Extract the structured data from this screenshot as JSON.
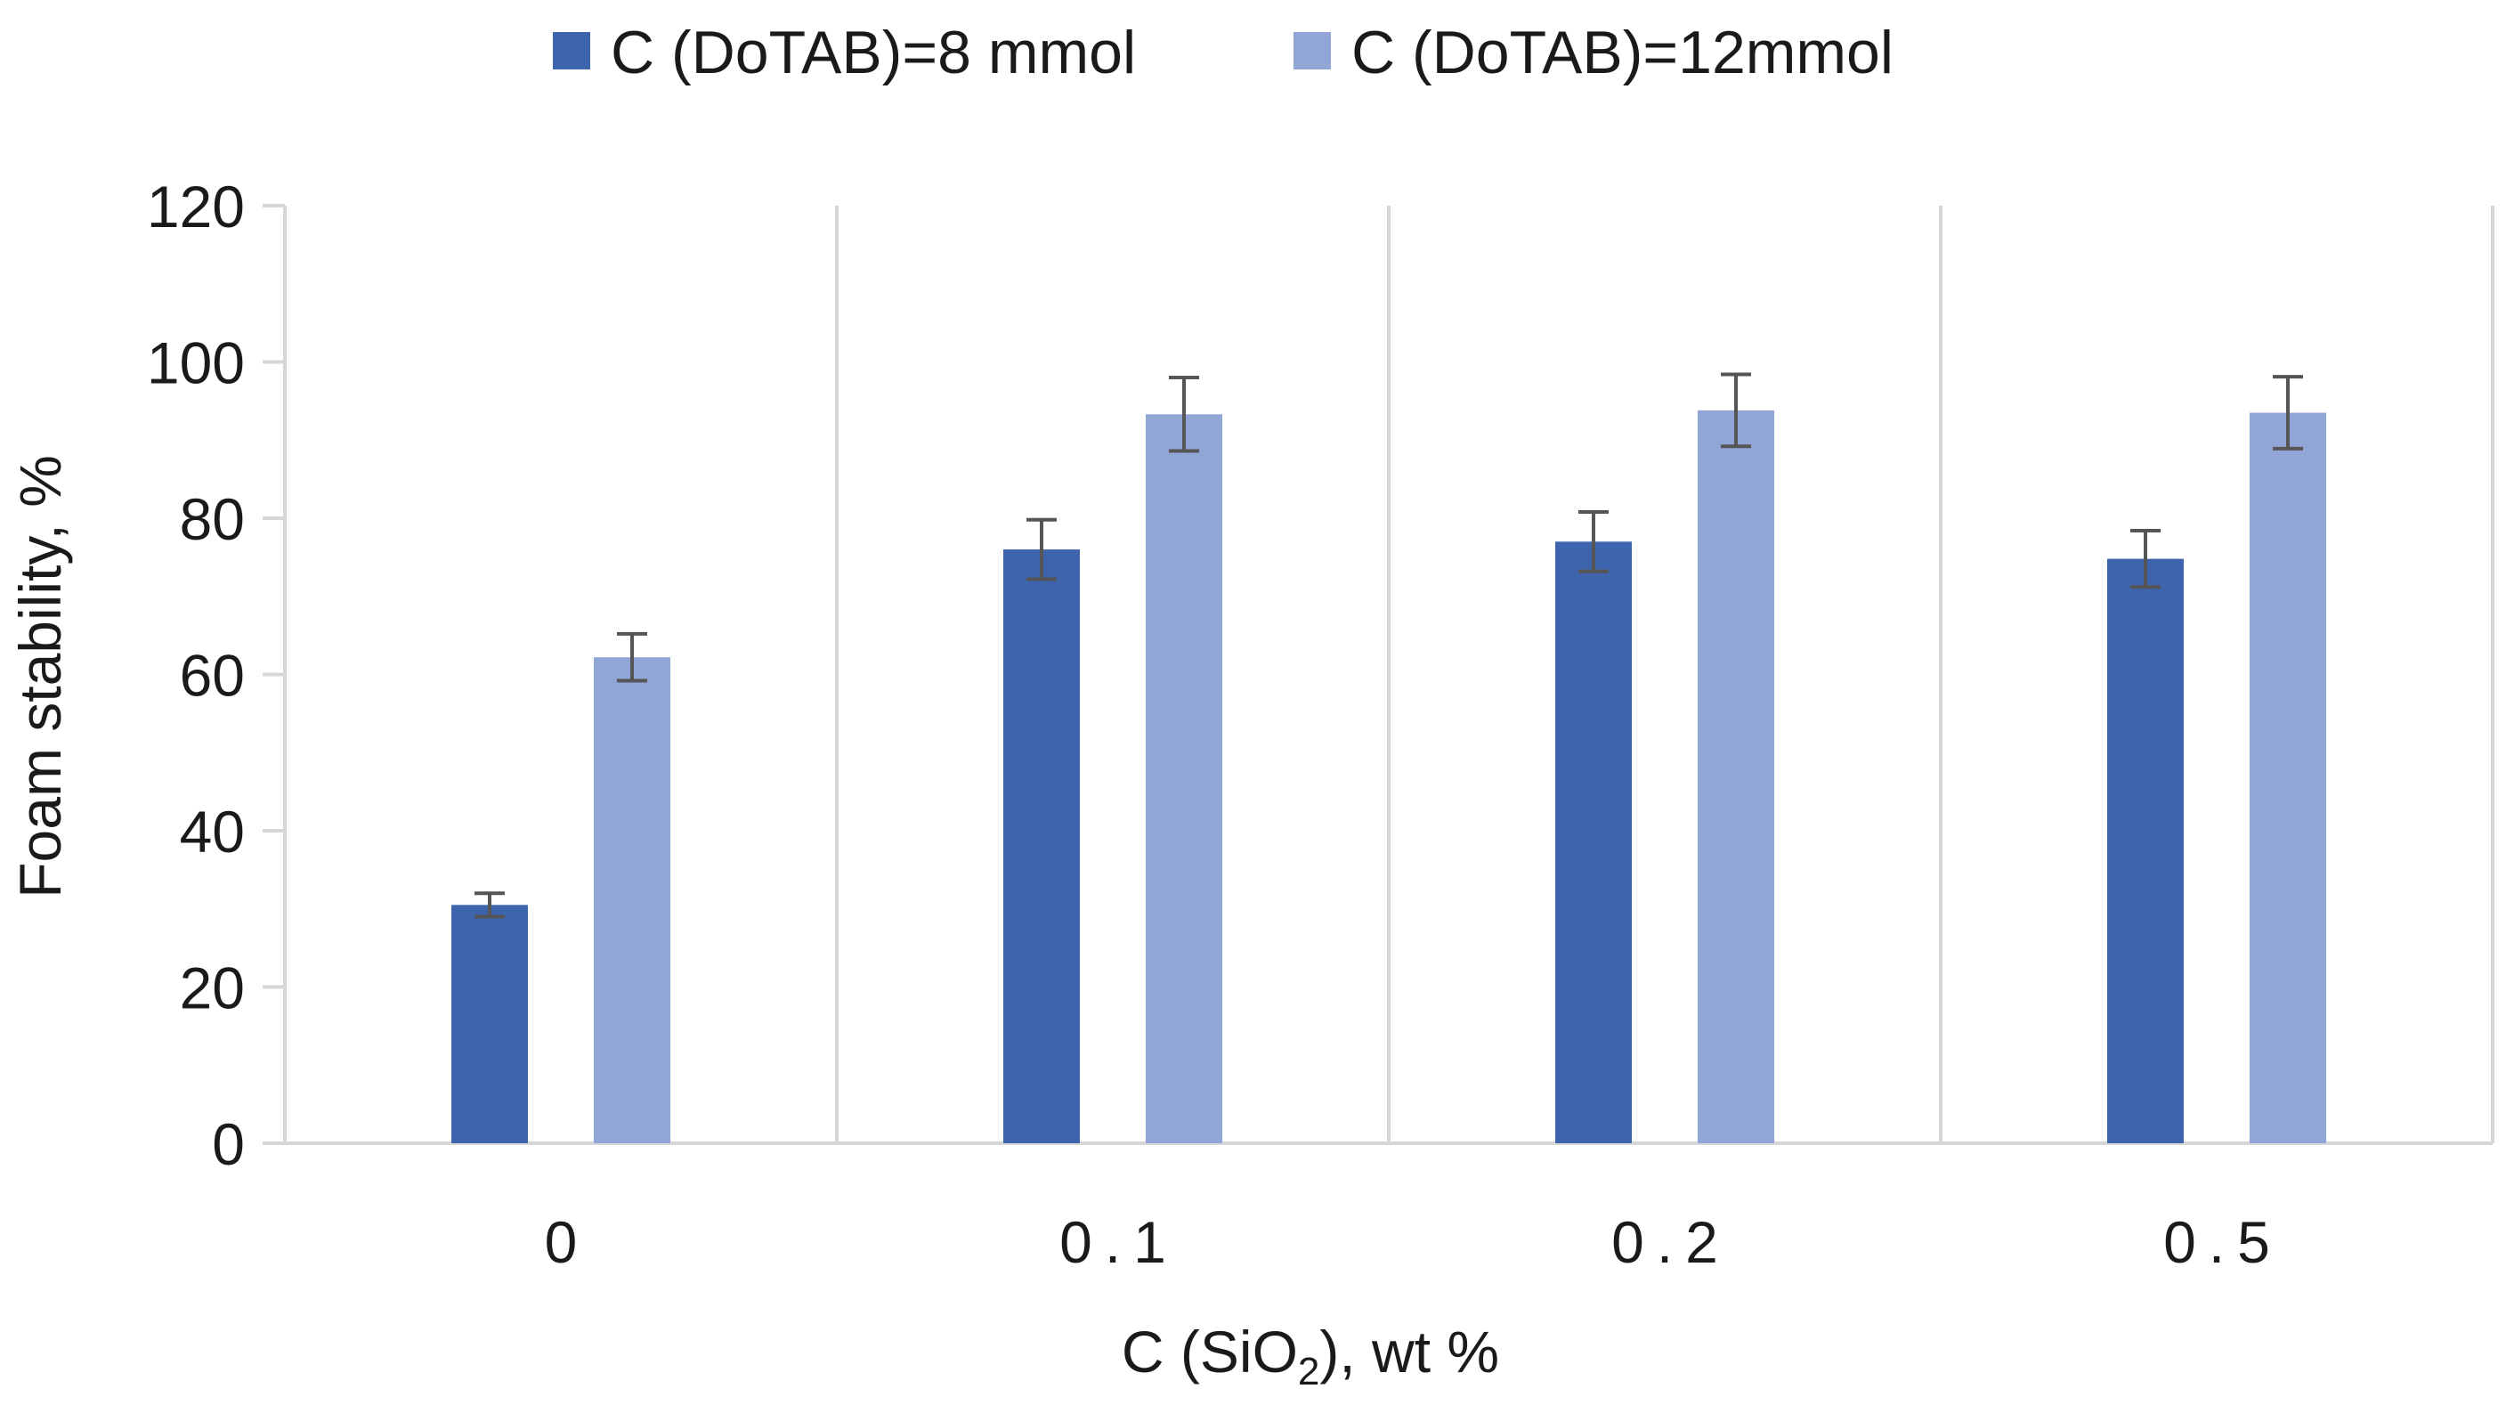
{
  "chart_data": {
    "type": "bar",
    "title": "",
    "categories": [
      "0",
      "0.1",
      "0.2",
      "0.5"
    ],
    "series": [
      {
        "name": "C (DoTAB)=8 mmol",
        "color": "#3d64ad",
        "values": [
          30.5,
          76,
          77,
          74.8
        ],
        "error": [
          1.5,
          3.8,
          3.8,
          3.6
        ]
      },
      {
        "name": "C (DoTAB)=12mmol",
        "color": "#91a6d6",
        "values": [
          62.2,
          93.3,
          93.8,
          93.5
        ],
        "error": [
          3,
          4.7,
          4.6,
          4.6
        ]
      }
    ],
    "xlabel": {
      "main": "C (SiO",
      "sub": "2",
      "tail": "), wt %"
    },
    "ylabel": "Foam stability, %",
    "ylim": [
      0,
      120
    ],
    "yticks": [
      0,
      20,
      40,
      60,
      80,
      100,
      120
    ],
    "grid": "vertical-separators",
    "legend": "top-center"
  }
}
